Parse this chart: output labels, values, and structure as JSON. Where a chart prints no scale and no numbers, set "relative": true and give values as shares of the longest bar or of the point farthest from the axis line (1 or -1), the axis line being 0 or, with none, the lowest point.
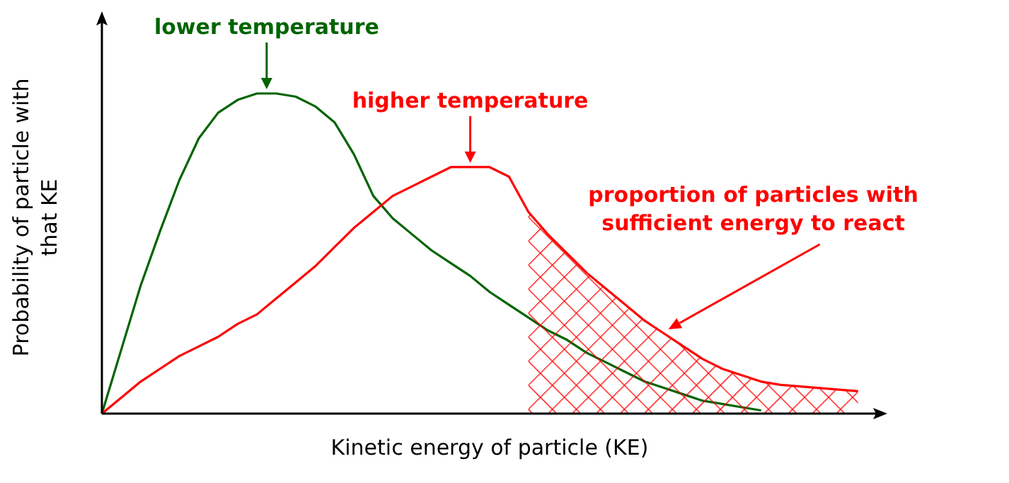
{
  "chart_data": {
    "type": "line",
    "relative": true,
    "xlabel": "Kinetic energy of particle (KE)",
    "ylabel": "Probability of particle with that KE",
    "marker": "none",
    "line_style": "solid",
    "categories": [
      null,
      null,
      null,
      null,
      null,
      null,
      null,
      null,
      null,
      null,
      null,
      null,
      null,
      null,
      null,
      null,
      null,
      null,
      null,
      null,
      null,
      null,
      null,
      null,
      null,
      null,
      null,
      null,
      null,
      null,
      null,
      null,
      null,
      null,
      null,
      null,
      null,
      null,
      null,
      null,
      null
    ],
    "series": [
      {
        "color": "#006400",
        "values": [
          0,
          0.2,
          0.4,
          0.57,
          0.73,
          0.86,
          0.94,
          0.98,
          1,
          1,
          0.99,
          0.96,
          0.91,
          0.81,
          0.68,
          0.61,
          0.56,
          0.51,
          0.47,
          0.43,
          0.38,
          0.34,
          0.3,
          0.26,
          0.23,
          0.19,
          0.16,
          0.13,
          0.1,
          0.08,
          0.06,
          0.04,
          0.03,
          0.02,
          0.01,
          null,
          null,
          null,
          null,
          null,
          null
        ]
      },
      {
        "color": "#ff0000",
        "values": [
          0,
          0.05,
          0.1,
          0.14,
          0.18,
          0.21,
          0.24,
          0.28,
          0.31,
          0.36,
          0.41,
          0.46,
          0.52,
          0.58,
          0.63,
          0.68,
          0.71,
          0.74,
          0.77,
          0.77,
          0.77,
          0.74,
          0.63,
          0.56,
          0.5,
          0.44,
          0.39,
          0.34,
          0.29,
          0.25,
          0.21,
          0.17,
          0.14,
          0.12,
          0.1,
          0.09,
          0.085,
          0.08,
          0.075,
          0.07,
          null
        ]
      },
      {
        "type": "area",
        "color": "#ff0000",
        "values": [
          null,
          null,
          null,
          null,
          null,
          null,
          null,
          null,
          null,
          null,
          null,
          null,
          null,
          null,
          null,
          null,
          null,
          null,
          null,
          null,
          null,
          null,
          0.63,
          0.56,
          0.5,
          0.44,
          0.39,
          0.34,
          0.29,
          0.25,
          0.21,
          0.17,
          0.14,
          0.12,
          0.1,
          0.09,
          0.085,
          0.08,
          0.075,
          0.07,
          null
        ]
      }
    ],
    "annotations": [
      "lower temperature",
      "higher temperature",
      "proportion of particles with sufficient energy to react"
    ]
  }
}
